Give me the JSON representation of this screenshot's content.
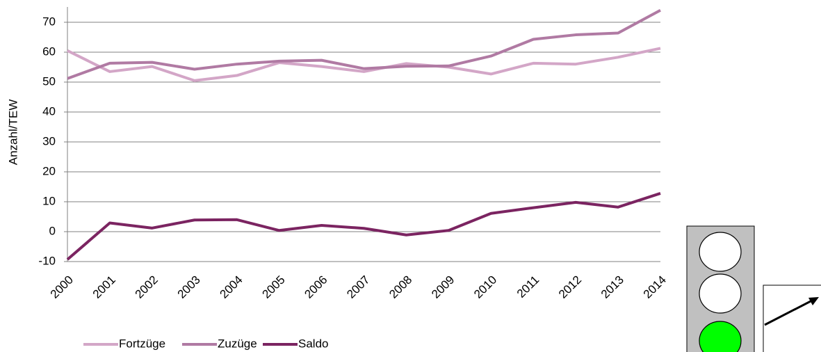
{
  "chart_data": {
    "type": "line",
    "y_label": "Anzahl/TEW",
    "categories": [
      "2000",
      "2001",
      "2002",
      "2003",
      "2004",
      "2005",
      "2006",
      "2007",
      "2008",
      "2009",
      "2010",
      "2011",
      "2012",
      "2013",
      "2014"
    ],
    "series": [
      {
        "name": "Fortzüge",
        "color": "#d3a6c7",
        "values": [
          60.5,
          53.5,
          55.2,
          50.5,
          52.2,
          56.5,
          55.2,
          53.5,
          56.2,
          55,
          52.7,
          56.3,
          56,
          58.3,
          61.3
        ]
      },
      {
        "name": "Zuzüge",
        "color": "#b07aa3",
        "values": [
          51.2,
          56.3,
          56.6,
          54.3,
          56,
          57,
          57.3,
          54.5,
          55.3,
          55.4,
          58.7,
          64.3,
          65.8,
          66.4,
          74
        ]
      },
      {
        "name": "Saldo",
        "color": "#7b2461",
        "values": [
          -9.3,
          2.9,
          1.2,
          3.9,
          4,
          0.4,
          2.1,
          1.1,
          -1.1,
          0.4,
          6.1,
          8,
          9.8,
          8.2,
          12.8
        ]
      }
    ],
    "ylim": [
      -10,
      70
    ],
    "yticks": [
      -10,
      0,
      10,
      20,
      30,
      40,
      50,
      60,
      70
    ],
    "grid": true
  }
}
